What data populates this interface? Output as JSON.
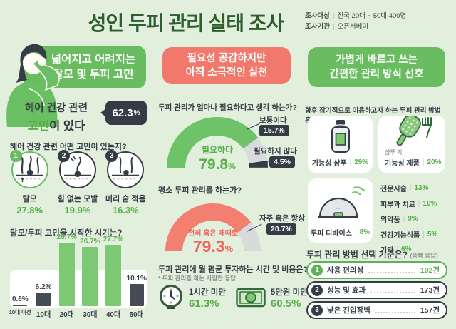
{
  "colors": {
    "background": "#e3efdd",
    "green_badge": "#69bd60",
    "green_bar": "#7cc873",
    "green_text": "#55b04b",
    "dark_navy": "#353c46",
    "salmon": "#f0796c",
    "gauge_gray": "#d7dbdc",
    "title_green": "#2c5e2e"
  },
  "header": {
    "title": "성인 두피 관리 실태 조사",
    "meta": [
      {
        "label": "조사대상",
        "separator": "|",
        "value": "전국 20대 ~ 50대 400명"
      },
      {
        "label": "조사기관",
        "separator": "|",
        "value": "오픈서베이"
      }
    ]
  },
  "left": {
    "badge": {
      "line1": "넓어지고 어려지는",
      "line2": "탈모 및 두피 고민"
    },
    "stat": {
      "line1": "헤어 건강 관련",
      "highlight": "고민",
      "line2_rest": "이 있다",
      "value": "62.3",
      "unit": "%"
    },
    "concern_question": "헤어 건강 관련 어떤 고민이 있는지?",
    "concerns": [
      {
        "rank": "1",
        "label": "탈모",
        "value": "27.8%"
      },
      {
        "rank": "2",
        "label": "힘 없는 모발",
        "value": "19.9%"
      },
      {
        "rank": "3",
        "label": "머리 숱 적음",
        "value": "16.3%"
      }
    ],
    "start_question": "탈모/두피 고민을 시작한 시기는?"
  },
  "middle": {
    "badge": {
      "line1": "필요성 공감하지만",
      "line2": "아직 소극적인 실천"
    },
    "gauge1": {
      "question": "두피 관리가 얼마나 필요하다고 생각 하는가?",
      "main_label": "필요하다",
      "main_value": "79.8",
      "unit": "%",
      "side": [
        {
          "label": "보통이다",
          "value": "15.7%"
        },
        {
          "label": "필요하지 않다",
          "value": "4.5%"
        }
      ]
    },
    "gauge2": {
      "question": "평소 두피 관리를 하는가?",
      "main_label": "전혀 혹은 때때로",
      "main_value": "79.3",
      "unit": "%",
      "side": [
        {
          "label": "자주 혹은 항상",
          "value": "20.7%"
        }
      ]
    },
    "invest": {
      "question": "두피 관리에 월 평균 투자하는 시간 및 비용은?",
      "footnote": "* 두피 관리를 하는 사람만 응답",
      "items": [
        {
          "icon": "clock-icon",
          "label": "1시간 미만",
          "value": "61.3%"
        },
        {
          "icon": "money-icon",
          "label": "5만원 미만",
          "value": "60.5%"
        }
      ]
    }
  },
  "right": {
    "badge": {
      "line1": "가볍게 바르고 쓰는",
      "line2": "간편한 관리 방식 선호"
    },
    "question": "향후 장기적으로 이용하고자 하는 두피 관리 방법은?",
    "cards": [
      {
        "icon": "shampoo-bottle-icon",
        "sub": "",
        "label": "기능성 샴푸",
        "separator": "|",
        "value": "29%"
      },
      {
        "icon": "brush-icon",
        "sub": "샴푸 외",
        "label": "기능성 제품",
        "separator": "|",
        "value": "20%"
      },
      {
        "icon": "scalp-device-icon",
        "sub": "",
        "label": "두피 디바이스",
        "separator": "|",
        "value": "8%"
      }
    ],
    "methods": [
      {
        "label": "전문시술",
        "separator": "|",
        "value": "13%"
      },
      {
        "label": "피부과 치료",
        "separator": "|",
        "value": "10%"
      },
      {
        "label": "의약품",
        "separator": "|",
        "value": "9%"
      },
      {
        "label": "건강기능식품",
        "separator": "|",
        "value": "5%"
      },
      {
        "label": "기타",
        "separator": "|",
        "value": "6%"
      }
    ],
    "criteria": {
      "title": "두피 관리 방법 선택 기준은?",
      "note": "(중복 응답)",
      "items": [
        {
          "rank": "1",
          "label": "사용 편의성",
          "value": "192건"
        },
        {
          "rank": "2",
          "label": "성능 및 효과",
          "value": "173건"
        },
        {
          "rank": "3",
          "label": "낮은 진입장벽",
          "value": "157건"
        }
      ]
    }
  },
  "chart_data": [
    {
      "id": "concern-start-period",
      "type": "bar",
      "title": "탈모/두피 고민을 시작한 시기는?",
      "categories": [
        "10대 이전",
        "10대",
        "20대",
        "30대",
        "40대",
        "50대"
      ],
      "values": [
        0.6,
        6.2,
        28.7,
        26.7,
        27.7,
        10.1
      ],
      "unit": "%",
      "highlight": [
        false,
        false,
        true,
        true,
        true,
        false
      ],
      "ylim": [
        0,
        30
      ],
      "grid": false,
      "bar_color_highlight": "#7cc873",
      "bar_color_default": "#454c56"
    },
    {
      "id": "need-awareness-gauge",
      "type": "pie",
      "title": "두피 관리가 얼마나 필요하다고 생각 하는가?",
      "style": "semicircle-donut",
      "segments": [
        {
          "label": "필요하다",
          "value": 79.8,
          "color": "#6ec267"
        },
        {
          "label": "보통이다",
          "value": 15.7,
          "color": "#d7dbdc"
        },
        {
          "label": "필요하지 않다",
          "value": 4.5,
          "color": "#353c46"
        }
      ]
    },
    {
      "id": "routine-care-gauge",
      "type": "pie",
      "title": "평소 두피 관리를 하는가?",
      "style": "semicircle-donut",
      "segments": [
        {
          "label": "전혀 혹은 때때로",
          "value": 79.3,
          "color": "#f37f70"
        },
        {
          "label": "자주 혹은 항상",
          "value": 20.7,
          "color": "#d7dbdc"
        }
      ]
    },
    {
      "id": "monthly-investment",
      "type": "table",
      "title": "두피 관리에 월 평균 투자하는 시간 및 비용은?",
      "rows": [
        [
          "1시간 미만",
          61.3
        ],
        [
          "5만원 미만",
          60.5
        ]
      ],
      "unit": "%"
    },
    {
      "id": "future-care-methods",
      "type": "table",
      "title": "향후 장기적으로 이용하고자 하는 두피 관리 방법은?",
      "rows": [
        [
          "기능성 샴푸",
          29
        ],
        [
          "샴푸 외 기능성 제품",
          20
        ],
        [
          "두피 디바이스",
          8
        ],
        [
          "전문시술",
          13
        ],
        [
          "피부과 치료",
          10
        ],
        [
          "의약품",
          9
        ],
        [
          "건강기능식품",
          5
        ],
        [
          "기타",
          6
        ]
      ],
      "unit": "%"
    },
    {
      "id": "selection-criteria",
      "type": "bar",
      "title": "두피 관리 방법 선택 기준은? (중복 응답)",
      "categories": [
        "사용 편의성",
        "성능 및 효과",
        "낮은 진입장벽"
      ],
      "values": [
        192,
        173,
        157
      ],
      "unit": "건"
    }
  ]
}
